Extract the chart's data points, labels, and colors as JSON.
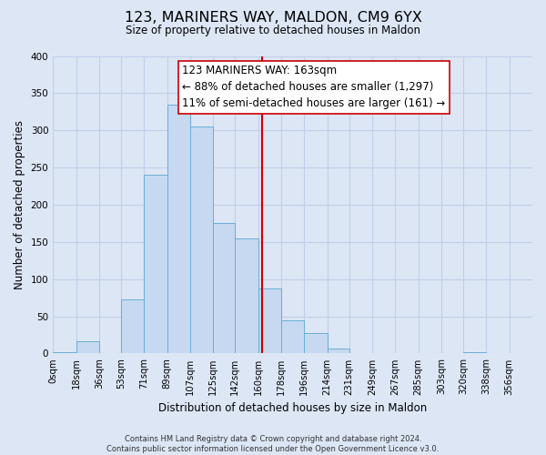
{
  "title": "123, MARINERS WAY, MALDON, CM9 6YX",
  "subtitle": "Size of property relative to detached houses in Maldon",
  "xlabel": "Distribution of detached houses by size in Maldon",
  "ylabel": "Number of detached properties",
  "bar_edges": [
    0,
    18,
    36,
    53,
    71,
    89,
    107,
    125,
    142,
    160,
    178,
    196,
    214,
    231,
    249,
    267,
    285,
    303,
    320,
    338,
    356
  ],
  "bar_heights": [
    2,
    16,
    1,
    73,
    240,
    335,
    305,
    175,
    155,
    88,
    45,
    27,
    7,
    1,
    1,
    0,
    0,
    0,
    2,
    0
  ],
  "tick_labels": [
    "0sqm",
    "18sqm",
    "36sqm",
    "53sqm",
    "71sqm",
    "89sqm",
    "107sqm",
    "125sqm",
    "142sqm",
    "160sqm",
    "178sqm",
    "196sqm",
    "214sqm",
    "231sqm",
    "249sqm",
    "267sqm",
    "285sqm",
    "303sqm",
    "320sqm",
    "338sqm",
    "356sqm"
  ],
  "bar_color": "#c6d9f0",
  "bar_edge_color": "#6aaed6",
  "vline_x": 163,
  "vline_color": "#cc0000",
  "ylim": [
    0,
    400
  ],
  "xlim": [
    0,
    374
  ],
  "annotation_line1": "123 MARINERS WAY: 163sqm",
  "annotation_line2": "← 88% of detached houses are smaller (1,297)",
  "annotation_line3": "11% of semi-detached houses are larger (161) →",
  "footer_line1": "Contains HM Land Registry data © Crown copyright and database right 2024.",
  "footer_line2": "Contains public sector information licensed under the Open Government Licence v3.0.",
  "background_color": "#dce6f5",
  "plot_bg_color": "#dce6f5",
  "grid_color": "#c0cfe8"
}
